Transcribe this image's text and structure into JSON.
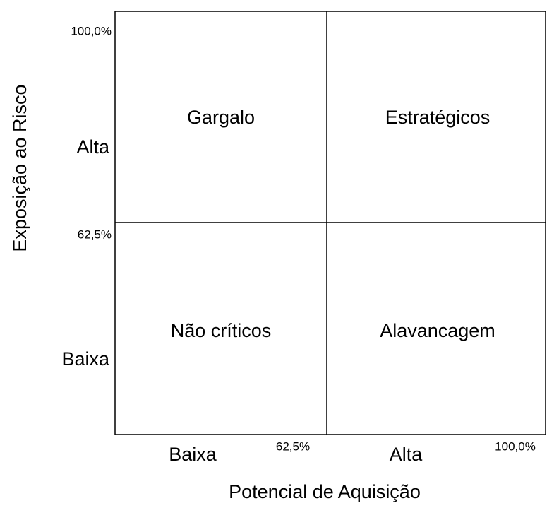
{
  "y_axis": {
    "title": "Exposição ao Risco",
    "high_label": "Alta",
    "low_label": "Baixa",
    "top_value": "100,0%",
    "mid_value": "62,5%"
  },
  "x_axis": {
    "title": "Potencial de Aquisição",
    "low_label": "Baixa",
    "high_label": "Alta",
    "mid_value": "62,5%",
    "end_value": "100,0%"
  },
  "quadrants": {
    "top_left": "Gargalo",
    "top_right": "Estratégicos",
    "bottom_left": "Não críticos",
    "bottom_right": "Alavancagem"
  }
}
